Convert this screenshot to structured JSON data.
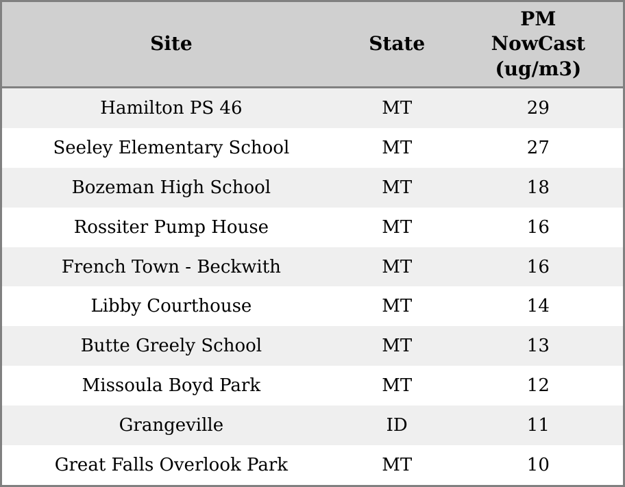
{
  "colors": {
    "header_bg": "#d0d0d0",
    "row_alt_bg": "#efefef",
    "row_bg": "#ffffff",
    "border": "#808080",
    "text": "#000000"
  },
  "table": {
    "columns": [
      {
        "label": "Site"
      },
      {
        "label": "State"
      },
      {
        "label": "PM\nNowCast\n(ug/m3)"
      }
    ],
    "rows": [
      {
        "site": "Hamilton PS 46",
        "state": "MT",
        "pm_nowcast": "29"
      },
      {
        "site": "Seeley Elementary School",
        "state": "MT",
        "pm_nowcast": "27"
      },
      {
        "site": "Bozeman High School",
        "state": "MT",
        "pm_nowcast": "18"
      },
      {
        "site": "Rossiter Pump House",
        "state": "MT",
        "pm_nowcast": "16"
      },
      {
        "site": "French Town - Beckwith",
        "state": "MT",
        "pm_nowcast": "16"
      },
      {
        "site": "Libby Courthouse",
        "state": "MT",
        "pm_nowcast": "14"
      },
      {
        "site": "Butte Greely School",
        "state": "MT",
        "pm_nowcast": "13"
      },
      {
        "site": "Missoula Boyd Park",
        "state": "MT",
        "pm_nowcast": "12"
      },
      {
        "site": "Grangeville",
        "state": "ID",
        "pm_nowcast": "11"
      },
      {
        "site": "Great Falls Overlook Park",
        "state": "MT",
        "pm_nowcast": "10"
      }
    ]
  }
}
